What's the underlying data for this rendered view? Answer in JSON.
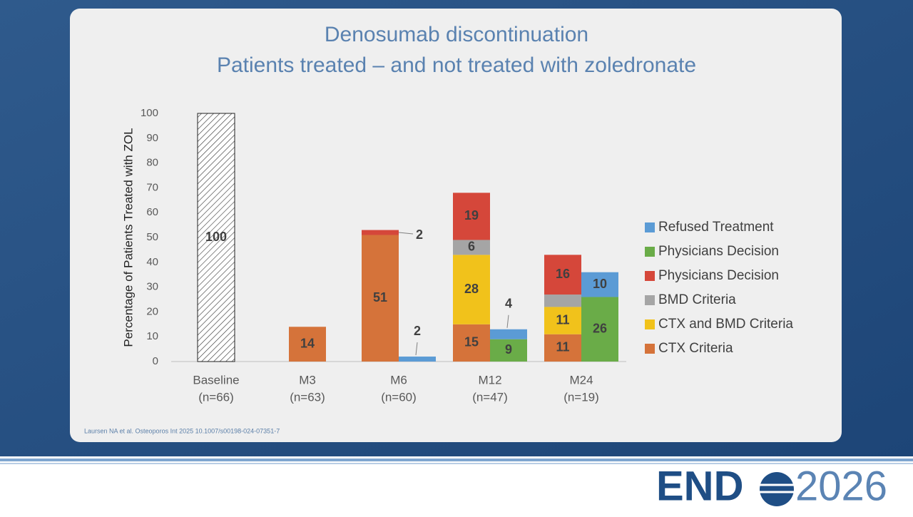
{
  "chart_data": {
    "type": "stacked-bar",
    "title": [
      "Denosumab discontinuation",
      "Patients treated – and not treated with zoledronate"
    ],
    "y_label": "Percentage of Patients Treated with ZOL",
    "categories": [
      "Baseline",
      "M3",
      "M6",
      "M12",
      "M24"
    ],
    "category_counts": [
      "(n=66)",
      "(n=63)",
      "(n=60)",
      "(n=47)",
      "(n=19)"
    ],
    "ylim": [
      0,
      100
    ],
    "yticks": [
      0,
      10,
      20,
      30,
      40,
      50,
      60,
      70,
      80,
      90,
      100
    ],
    "series": [
      {
        "color": "hatch",
        "stack": "left",
        "values": [
          100,
          null,
          null,
          null,
          null
        ]
      },
      {
        "name": "CTX Criteria",
        "color": "#d5733a",
        "stack": "left",
        "values": [
          null,
          14,
          51,
          15,
          11
        ]
      },
      {
        "name": "CTX and BMD Criteria",
        "color": "#f1c21b",
        "stack": "left",
        "values": [
          null,
          null,
          null,
          28,
          11
        ]
      },
      {
        "name": "BMD Criteria",
        "color": "#a5a5a5",
        "stack": "left",
        "values": [
          null,
          null,
          null,
          6,
          5
        ]
      },
      {
        "name": "Physicians Decision",
        "color": "#d5473a",
        "stack": "left",
        "values": [
          null,
          null,
          2,
          19,
          16
        ]
      },
      {
        "name": "Physicians Decision",
        "color": "#6aac48",
        "stack": "right",
        "values": [
          null,
          null,
          null,
          9,
          26
        ]
      },
      {
        "name": "Refused Treatment",
        "color": "#5b9bd5",
        "stack": "right",
        "values": [
          null,
          null,
          2,
          4,
          10
        ]
      }
    ],
    "citation": "Laursen NA et al. Osteoporos Int 2025 10.1007/s00198-024-07351-7"
  },
  "logo": {
    "left": "END",
    "right": "2026"
  }
}
